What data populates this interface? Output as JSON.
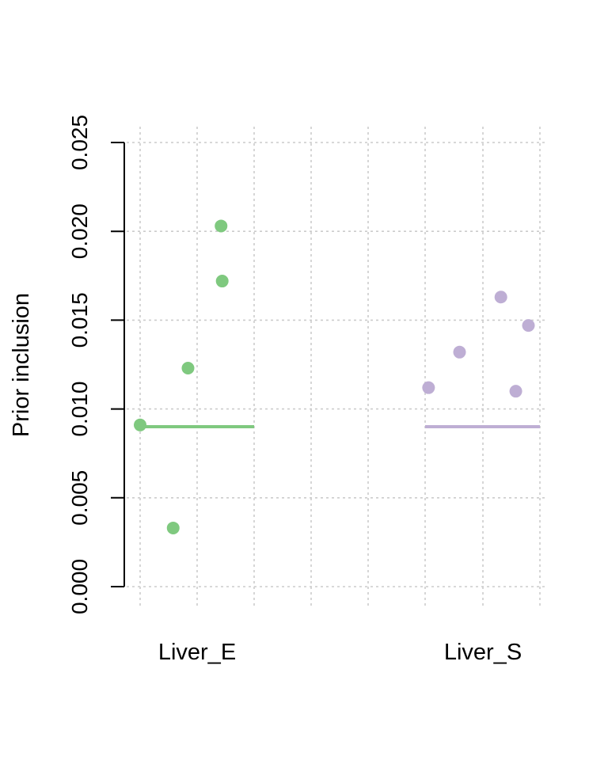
{
  "chart_data": {
    "type": "scatter",
    "ylabel": "Prior inclusion",
    "ylim": [
      0,
      0.025
    ],
    "yticks": [
      "0.000",
      "0.005",
      "0.010",
      "0.015",
      "0.020",
      "0.025"
    ],
    "grid": true,
    "categories": [
      "Liver_E",
      "Liver_S"
    ],
    "series": [
      {
        "category": "Liver_E",
        "color": "#7fc97f",
        "points": [
          {
            "x": 0.0,
            "y": 0.0091
          },
          {
            "x": 0.29,
            "y": 0.0033
          },
          {
            "x": 0.42,
            "y": 0.0123
          },
          {
            "x": 0.71,
            "y": 0.0203
          },
          {
            "x": 0.72,
            "y": 0.0172
          }
        ],
        "mean": 0.009
      },
      {
        "category": "Liver_S",
        "color": "#beaed4",
        "points": [
          {
            "x": 0.03,
            "y": 0.0112
          },
          {
            "x": 0.3,
            "y": 0.0132
          },
          {
            "x": 0.66,
            "y": 0.0163
          },
          {
            "x": 0.79,
            "y": 0.011
          },
          {
            "x": 0.9,
            "y": 0.0147
          }
        ],
        "mean": 0.009
      }
    ]
  }
}
